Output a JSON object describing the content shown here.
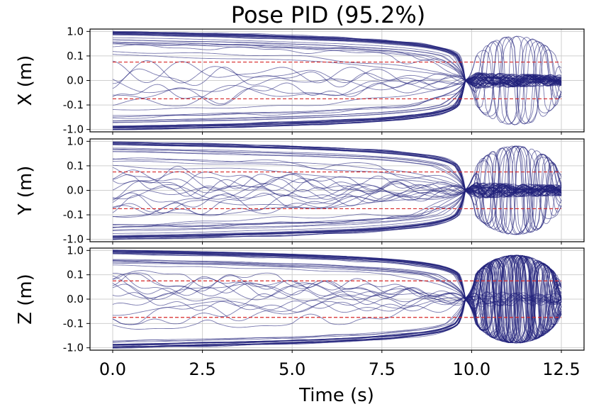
{
  "chart_data": {
    "type": "line",
    "title": "Pose PID (95.2%)",
    "xlabel": "Time (s)",
    "xlim": [
      0,
      12.5
    ],
    "xticks": [
      0,
      2.5,
      5,
      7.5,
      10,
      12.5
    ],
    "xtick_labels": [
      "0.0",
      "2.5",
      "5.0",
      "7.5",
      "10.0",
      "12.5"
    ],
    "y_scale": "symlog",
    "y_linthresh": 0.1,
    "yticks": [
      1.0,
      0.1,
      0.0,
      -0.1,
      -1.0
    ],
    "ytick_labels": [
      "1.0",
      "0.1",
      "0.0",
      "-0.1",
      "-1.0"
    ],
    "ylim": [
      -1.25,
      1.25
    ],
    "threshold_lines": [
      0.075,
      -0.075
    ],
    "threshold_color": "#d62728",
    "line_color": "#1f1f7a",
    "num_trajectories": 60,
    "convergence_time": 9.8,
    "grid": true,
    "subplots": [
      {
        "ylabel": "X (m)",
        "wild_after": 0.15
      },
      {
        "ylabel": "Y (m)",
        "wild_after": 0.25
      },
      {
        "ylabel": "Z (m)",
        "wild_after": 0.8
      }
    ]
  }
}
